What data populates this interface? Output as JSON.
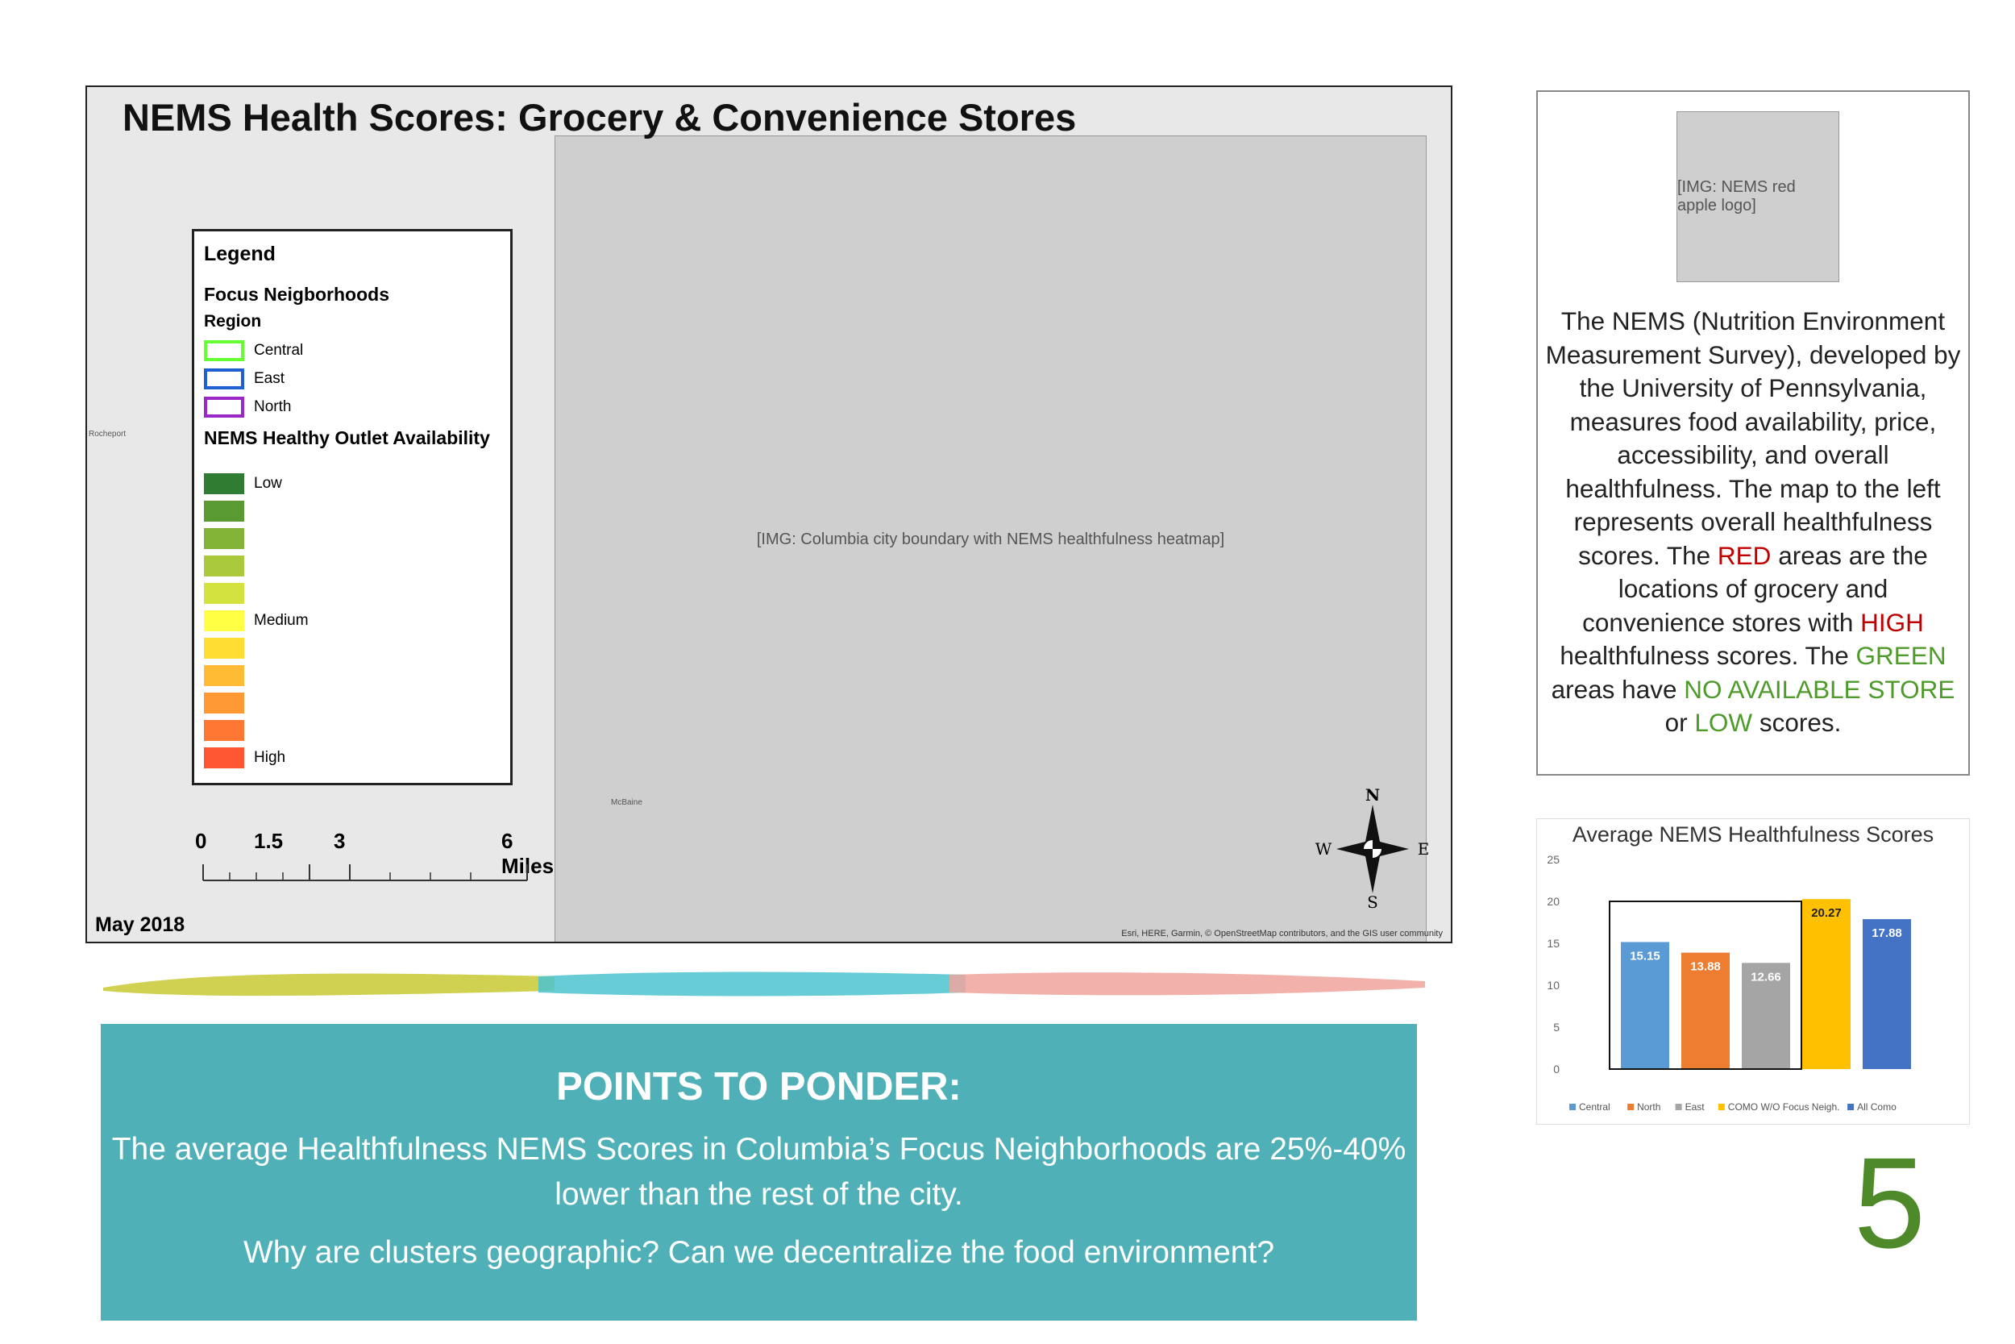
{
  "map": {
    "title": "NEMS Health Scores: Grocery & Convenience Stores",
    "date": "May 2018",
    "attribution": "Esri, HERE, Garmin, © OpenStreetMap contributors, and the GIS user community",
    "place_labels": [
      "Rocheport",
      "McBaine"
    ],
    "legend": {
      "title": "Legend",
      "focus_heading": "Focus Neigborhoods",
      "region_heading": "Region",
      "regions": [
        {
          "label": "Central",
          "color": "#66ff33"
        },
        {
          "label": "East",
          "color": "#1f5fd6"
        },
        {
          "label": "North",
          "color": "#9b27c9"
        }
      ],
      "availability_heading": "NEMS Healthy Outlet Availability",
      "ramp_labels": {
        "low": "Low",
        "medium": "Medium",
        "high": "High"
      },
      "ramp_colors": [
        "#2e7d32",
        "#5a9a32",
        "#83b337",
        "#aac93c",
        "#d3e23f",
        "#ffff44",
        "#ffdd33",
        "#ffbb33",
        "#ff9933",
        "#ff7733",
        "#ff5533"
      ]
    },
    "scalebar": {
      "labels": [
        "0",
        "1.5",
        "3",
        "6 Miles"
      ]
    },
    "compass": {
      "n": "N",
      "s": "S",
      "e": "E",
      "w": "W"
    }
  },
  "info": {
    "logo_text": "NEMS",
    "p1": "The NEMS (Nutrition Environment Measurement Survey), developed by the University of Pennsylvania, measures food availability, price, accessibility, and overall healthfulness. The map to the left represents overall healthfulness scores. The ",
    "red_word": "RED",
    "p2": " areas are the locations of grocery and convenience stores with ",
    "high_word": "HIGH",
    "p3": " healthfulness scores. The ",
    "green_word": "GREEN",
    "p4": " areas have ",
    "no_store": "NO AVAILABLE STORE",
    "p5": " or ",
    "low_word": "LOW",
    "p6": " scores."
  },
  "chart_data": {
    "type": "bar",
    "title": "Average NEMS Healthfulness Scores",
    "categories": [
      "Central",
      "North",
      "East",
      "COMO W/O Focus Neigh.",
      "All Como"
    ],
    "values": [
      15.15,
      13.88,
      12.66,
      20.27,
      17.88
    ],
    "value_labels": [
      "15.15",
      "13.88",
      "12.66",
      "20.27",
      "17.88"
    ],
    "colors": [
      "#5b9bd5",
      "#ed7d31",
      "#a5a5a5",
      "#ffc000",
      "#4472c4"
    ],
    "ylim": [
      0,
      25
    ],
    "yticks": [
      "0",
      "5",
      "10",
      "15",
      "20",
      "25"
    ],
    "legend_position": "bottom"
  },
  "brush_colors": [
    "#c8c832",
    "#4cc3cf",
    "#f0a59c"
  ],
  "ponder": {
    "heading": "POINTS TO PONDER:",
    "line1": "The average Healthfulness NEMS Scores in Columbia’s Focus Neighborhoods are 25%-40% lower than the rest of the city.",
    "line2": "Why are clusters geographic? Can we decentralize the food environment?"
  },
  "page_number": "5"
}
